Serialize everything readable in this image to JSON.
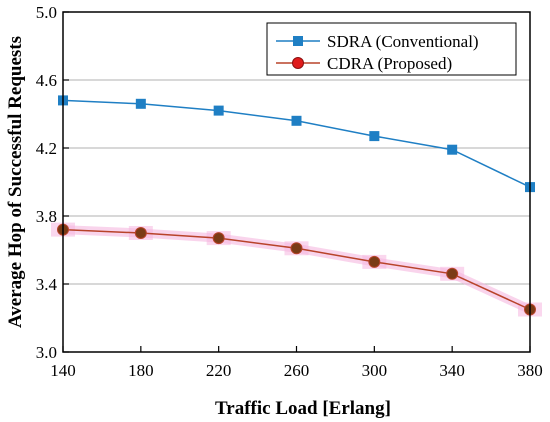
{
  "chart_data": {
    "type": "line",
    "title": "",
    "xlabel": "Traffic Load [Erlang]",
    "ylabel": "Average Hop of Successful Requests",
    "x": [
      140,
      180,
      220,
      260,
      300,
      340,
      380
    ],
    "xlim": [
      140,
      380
    ],
    "ylim": [
      3.0,
      5.0
    ],
    "x_ticks": [
      "140",
      "180",
      "220",
      "260",
      "300",
      "340",
      "380"
    ],
    "y_ticks": [
      "3.0",
      "3.4",
      "3.8",
      "4.2",
      "4.6",
      "5.0"
    ],
    "grid": "horizontal",
    "legend_position": "top-right",
    "series": [
      {
        "name": "SDRA (Conventional)",
        "values": [
          4.48,
          4.46,
          4.42,
          4.36,
          4.27,
          4.19,
          3.97
        ],
        "color": "#1f7fc4",
        "marker": "square"
      },
      {
        "name": "CDRA (Proposed)",
        "values": [
          3.72,
          3.7,
          3.67,
          3.61,
          3.53,
          3.46,
          3.25
        ],
        "color": "#b8432a",
        "marker": "circle",
        "marker_fill": "#7a3b16",
        "band_color": "#f5b7e0"
      }
    ]
  }
}
